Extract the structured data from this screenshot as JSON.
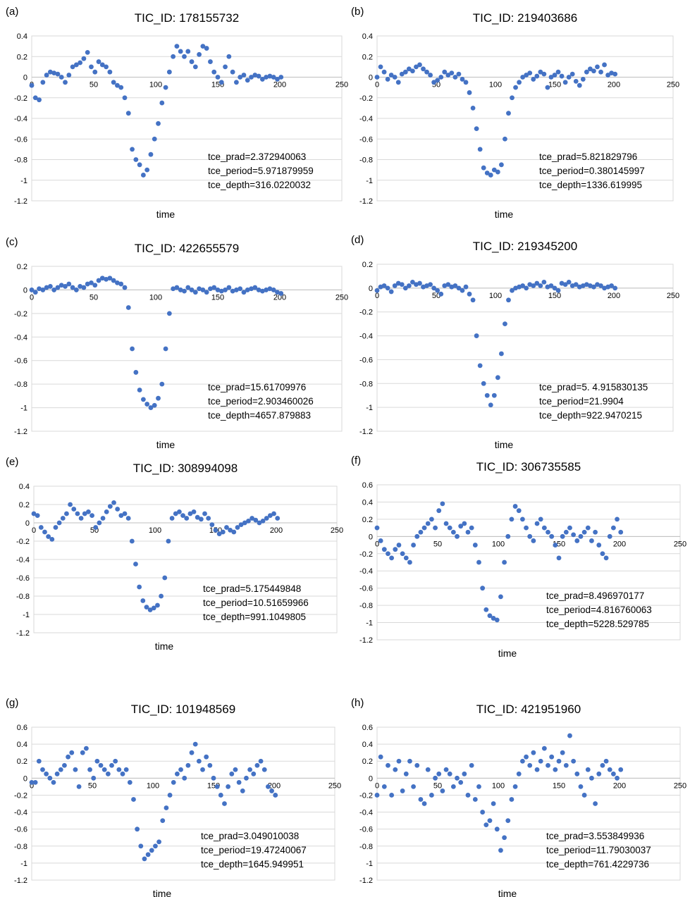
{
  "chart_data": [
    {
      "label": "(a)",
      "title": "TIC_ID: 178155732",
      "type": "scatter",
      "xlabel": "time",
      "xlim": [
        0,
        250
      ],
      "ylim": [
        -1.2,
        0.4
      ],
      "xticks": [
        "0",
        "50",
        "100",
        "150",
        "200",
        "250"
      ],
      "yticks": [
        "0.4",
        "0.2",
        "0",
        "-0.2",
        "-0.4",
        "-0.6",
        "-0.8",
        "-1",
        "-1.2"
      ],
      "annotations": [
        "tce_prad=2.372940063",
        "tce_period=5.971879959",
        "tce_depth=316.0220032"
      ],
      "color": "#4472C4",
      "x": [
        0,
        3,
        6,
        9,
        12,
        15,
        18,
        21,
        24,
        27,
        30,
        33,
        36,
        39,
        42,
        45,
        48,
        51,
        54,
        57,
        60,
        63,
        66,
        69,
        72,
        75,
        78,
        81,
        84,
        87,
        90,
        93,
        96,
        99,
        102,
        105,
        108,
        111,
        114,
        117,
        120,
        123,
        126,
        129,
        132,
        135,
        138,
        141,
        144,
        147,
        150,
        153,
        156,
        159,
        162,
        165,
        168,
        171,
        174,
        177,
        180,
        183,
        186,
        189,
        192,
        195,
        198,
        201
      ],
      "y": [
        -0.08,
        -0.2,
        -0.22,
        -0.05,
        0.02,
        0.05,
        0.04,
        0.03,
        0.0,
        -0.05,
        0.02,
        0.1,
        0.12,
        0.14,
        0.18,
        0.24,
        0.1,
        0.05,
        0.15,
        0.12,
        0.1,
        0.05,
        -0.05,
        -0.08,
        -0.1,
        -0.2,
        -0.35,
        -0.7,
        -0.8,
        -0.85,
        -0.95,
        -0.9,
        -0.75,
        -0.6,
        -0.45,
        -0.25,
        -0.1,
        0.05,
        0.2,
        0.3,
        0.25,
        0.2,
        0.25,
        0.15,
        0.1,
        0.22,
        0.3,
        0.28,
        0.15,
        0.05,
        0.0,
        -0.05,
        0.1,
        0.2,
        0.05,
        -0.05,
        0.0,
        0.02,
        -0.03,
        0.0,
        0.02,
        0.01,
        -0.02,
        0.0,
        0.01,
        0.0,
        -0.02,
        0.0
      ]
    },
    {
      "label": "(b)",
      "title": "TIC_ID: 219403686",
      "type": "scatter",
      "xlabel": "time",
      "xlim": [
        0,
        250
      ],
      "ylim": [
        -1.2,
        0.4
      ],
      "xticks": [
        "0",
        "50",
        "100",
        "150",
        "200",
        "250"
      ],
      "yticks": [
        "0.4",
        "0.2",
        "0",
        "-0.2",
        "-0.4",
        "-0.6",
        "-0.8",
        "-1",
        "-1.2"
      ],
      "annotations": [
        "tce_prad=5.821829796",
        "tce_period=0.380145997",
        "tce_depth=1336.619995"
      ],
      "color": "#4472C4",
      "x": [
        0,
        3,
        6,
        9,
        12,
        15,
        18,
        21,
        24,
        27,
        30,
        33,
        36,
        39,
        42,
        45,
        48,
        51,
        54,
        57,
        60,
        63,
        66,
        69,
        72,
        75,
        78,
        81,
        84,
        87,
        90,
        93,
        96,
        99,
        102,
        105,
        108,
        111,
        114,
        117,
        120,
        123,
        126,
        129,
        132,
        135,
        138,
        141,
        144,
        147,
        150,
        153,
        156,
        159,
        162,
        165,
        168,
        171,
        174,
        177,
        180,
        183,
        186,
        189,
        192,
        195,
        198,
        201
      ],
      "y": [
        0.0,
        0.1,
        0.05,
        -0.02,
        0.02,
        0.0,
        -0.05,
        0.03,
        0.05,
        0.08,
        0.06,
        0.1,
        0.12,
        0.08,
        0.05,
        0.02,
        -0.05,
        -0.03,
        0.0,
        0.05,
        0.02,
        0.04,
        0.0,
        0.03,
        -0.02,
        -0.05,
        -0.15,
        -0.3,
        -0.5,
        -0.7,
        -0.88,
        -0.93,
        -0.95,
        -0.9,
        -0.92,
        -0.85,
        -0.6,
        -0.35,
        -0.2,
        -0.1,
        -0.05,
        0.0,
        0.02,
        0.04,
        -0.02,
        0.01,
        0.05,
        0.03,
        -0.1,
        0.0,
        0.02,
        0.05,
        0.01,
        -0.05,
        0.0,
        0.03,
        -0.04,
        -0.08,
        -0.02,
        0.05,
        0.08,
        0.06,
        0.1,
        0.05,
        0.12,
        0.02,
        0.04,
        0.03
      ]
    },
    {
      "label": "(c)",
      "title": "TIC_ID: 422655579",
      "type": "scatter",
      "xlabel": "time",
      "xlim": [
        0,
        250
      ],
      "ylim": [
        -1.2,
        0.2
      ],
      "xticks": [
        "0",
        "50",
        "100",
        "150",
        "200",
        "250"
      ],
      "yticks": [
        "0.2",
        "0",
        "-0.2",
        "-0.4",
        "-0.6",
        "-0.8",
        "-1",
        "-1.2"
      ],
      "annotations": [
        "tce_prad=15.61709976",
        "tce_period=2.903460026",
        "tce_depth=4657.879883"
      ],
      "color": "#4472C4",
      "x": [
        0,
        3,
        6,
        9,
        12,
        15,
        18,
        21,
        24,
        27,
        30,
        33,
        36,
        39,
        42,
        45,
        48,
        51,
        54,
        57,
        60,
        63,
        66,
        69,
        72,
        75,
        78,
        81,
        84,
        87,
        90,
        93,
        96,
        99,
        102,
        105,
        108,
        111,
        114,
        117,
        120,
        123,
        126,
        129,
        132,
        135,
        138,
        141,
        144,
        147,
        150,
        153,
        156,
        159,
        162,
        165,
        168,
        171,
        174,
        177,
        180,
        183,
        186,
        189,
        192,
        195,
        198,
        201
      ],
      "y": [
        0.0,
        -0.02,
        0.01,
        0.0,
        0.02,
        0.03,
        0.0,
        0.02,
        0.04,
        0.03,
        0.05,
        0.02,
        0.0,
        0.03,
        0.02,
        0.05,
        0.06,
        0.04,
        0.08,
        0.1,
        0.09,
        0.1,
        0.08,
        0.06,
        0.05,
        0.02,
        -0.15,
        -0.5,
        -0.7,
        -0.85,
        -0.93,
        -0.97,
        -1.0,
        -0.98,
        -0.92,
        -0.8,
        -0.5,
        -0.2,
        0.01,
        0.02,
        0.0,
        -0.01,
        0.02,
        0.0,
        -0.02,
        0.01,
        0.0,
        -0.02,
        0.01,
        0.02,
        0.0,
        -0.01,
        0.0,
        0.02,
        -0.01,
        0.0,
        0.01,
        -0.02,
        0.0,
        0.01,
        0.02,
        0.0,
        -0.01,
        0.0,
        0.01,
        0.0,
        -0.02,
        -0.03
      ]
    },
    {
      "label": "(d)",
      "title": "TIC_ID: 219345200",
      "type": "scatter",
      "xlabel": "time",
      "xlim": [
        0,
        250
      ],
      "ylim": [
        -1.2,
        0.2
      ],
      "xticks": [
        "0",
        "50",
        "100",
        "150",
        "200",
        "250"
      ],
      "yticks": [
        "0.2",
        "0",
        "-0.2",
        "-0.4",
        "-0.6",
        "-0.8",
        "-1",
        "-1.2"
      ],
      "annotations": [
        "tce_prad=5. 4.915830135",
        "tce_period=21.9904",
        "tce_depth=922.9470215"
      ],
      "color": "#4472C4",
      "x": [
        0,
        3,
        6,
        9,
        12,
        15,
        18,
        21,
        24,
        27,
        30,
        33,
        36,
        39,
        42,
        45,
        48,
        51,
        54,
        57,
        60,
        63,
        66,
        69,
        72,
        75,
        78,
        81,
        84,
        87,
        90,
        93,
        96,
        99,
        102,
        105,
        108,
        111,
        114,
        117,
        120,
        123,
        126,
        129,
        132,
        135,
        138,
        141,
        144,
        147,
        150,
        153,
        156,
        159,
        162,
        165,
        168,
        171,
        174,
        177,
        180,
        183,
        186,
        189,
        192,
        195,
        198,
        201
      ],
      "y": [
        -0.02,
        0.01,
        0.02,
        0.0,
        -0.03,
        0.02,
        0.04,
        0.03,
        0.0,
        0.02,
        0.05,
        0.03,
        0.04,
        0.01,
        0.02,
        0.03,
        0.0,
        -0.02,
        -0.05,
        0.02,
        0.03,
        0.01,
        0.02,
        0.0,
        -0.02,
        0.01,
        -0.05,
        -0.1,
        -0.4,
        -0.65,
        -0.8,
        -0.9,
        -0.98,
        -0.9,
        -0.75,
        -0.55,
        -0.3,
        -0.1,
        -0.02,
        0.0,
        0.01,
        0.02,
        0.0,
        0.03,
        0.02,
        0.04,
        0.02,
        0.05,
        0.01,
        0.02,
        0.0,
        -0.02,
        0.04,
        0.03,
        0.05,
        0.02,
        0.03,
        0.01,
        0.02,
        0.03,
        0.02,
        0.01,
        0.03,
        0.02,
        0.0,
        0.01,
        0.02,
        0.0
      ]
    },
    {
      "label": "(e)",
      "title": "TIC_ID: 308994098",
      "type": "scatter",
      "xlabel": "time",
      "xlim": [
        0,
        250
      ],
      "ylim": [
        -1.2,
        0.4
      ],
      "xticks": [
        "0",
        "50",
        "100",
        "150",
        "200",
        "250"
      ],
      "yticks": [
        "0.4",
        "0.2",
        "0",
        "-0.2",
        "-0.4",
        "-0.6",
        "-0.8",
        "-1",
        "-1.2"
      ],
      "annotations": [
        "tce_prad=5.175449848",
        "tce_period=10.51659966",
        "tce_depth=991.1049805"
      ],
      "color": "#4472C4",
      "x": [
        0,
        3,
        6,
        9,
        12,
        15,
        18,
        21,
        24,
        27,
        30,
        33,
        36,
        39,
        42,
        45,
        48,
        51,
        54,
        57,
        60,
        63,
        66,
        69,
        72,
        75,
        78,
        81,
        84,
        87,
        90,
        93,
        96,
        99,
        102,
        105,
        108,
        111,
        114,
        117,
        120,
        123,
        126,
        129,
        132,
        135,
        138,
        141,
        144,
        147,
        150,
        153,
        156,
        159,
        162,
        165,
        168,
        171,
        174,
        177,
        180,
        183,
        186,
        189,
        192,
        195,
        198,
        201
      ],
      "y": [
        0.1,
        0.08,
        -0.05,
        -0.1,
        -0.15,
        -0.18,
        -0.05,
        0.0,
        0.05,
        0.1,
        0.2,
        0.15,
        0.1,
        0.05,
        0.1,
        0.12,
        0.08,
        -0.05,
        0.0,
        0.05,
        0.12,
        0.18,
        0.22,
        0.15,
        0.08,
        0.1,
        0.05,
        -0.2,
        -0.45,
        -0.7,
        -0.85,
        -0.92,
        -0.95,
        -0.93,
        -0.9,
        -0.8,
        -0.6,
        -0.2,
        0.05,
        0.1,
        0.12,
        0.08,
        0.05,
        0.1,
        0.12,
        0.06,
        0.04,
        0.1,
        0.05,
        -0.02,
        -0.08,
        -0.12,
        -0.1,
        -0.05,
        -0.08,
        -0.1,
        -0.05,
        -0.02,
        0.0,
        0.02,
        0.05,
        0.03,
        0.0,
        0.02,
        0.05,
        0.08,
        0.1,
        0.05
      ]
    },
    {
      "label": "(f)",
      "title": "TIC_ID: 306735585",
      "type": "scatter",
      "xlabel": "time",
      "xlim": [
        0,
        250
      ],
      "ylim": [
        -1.2,
        0.6
      ],
      "xticks": [
        "0",
        "50",
        "100",
        "150",
        "200",
        "250"
      ],
      "yticks": [
        "0.6",
        "0.4",
        "0.2",
        "0",
        "-0.2",
        "-0.4",
        "-0.6",
        "-0.8",
        "-1",
        "-1.2"
      ],
      "annotations": [
        "tce_prad=8.496970177",
        "tce_period=4.816760063",
        "tce_depth=5228.529785"
      ],
      "color": "#4472C4",
      "x": [
        0,
        3,
        6,
        9,
        12,
        15,
        18,
        21,
        24,
        27,
        30,
        33,
        36,
        39,
        42,
        45,
        48,
        51,
        54,
        57,
        60,
        63,
        66,
        69,
        72,
        75,
        78,
        81,
        84,
        87,
        90,
        93,
        96,
        99,
        102,
        105,
        108,
        111,
        114,
        117,
        120,
        123,
        126,
        129,
        132,
        135,
        138,
        141,
        144,
        147,
        150,
        153,
        156,
        159,
        162,
        165,
        168,
        171,
        174,
        177,
        180,
        183,
        186,
        189,
        192,
        195,
        198,
        201
      ],
      "y": [
        0.1,
        -0.05,
        -0.15,
        -0.2,
        -0.25,
        -0.15,
        -0.1,
        -0.2,
        -0.25,
        -0.3,
        -0.1,
        0.0,
        0.05,
        0.1,
        0.15,
        0.2,
        0.1,
        0.3,
        0.38,
        0.15,
        0.1,
        0.05,
        0.0,
        0.12,
        0.15,
        0.05,
        0.1,
        -0.1,
        -0.3,
        -0.6,
        -0.85,
        -0.92,
        -0.95,
        -0.97,
        -0.7,
        -0.3,
        0.0,
        0.2,
        0.35,
        0.3,
        0.2,
        0.1,
        0.0,
        -0.05,
        0.15,
        0.2,
        0.1,
        0.05,
        0.0,
        -0.1,
        -0.25,
        0.0,
        0.05,
        0.1,
        0.02,
        -0.05,
        0.0,
        0.05,
        0.1,
        -0.05,
        0.05,
        -0.1,
        -0.2,
        -0.25,
        0.0,
        0.1,
        0.2,
        0.05
      ]
    },
    {
      "label": "(g)",
      "title": "TIC_ID: 101948569",
      "type": "scatter",
      "xlabel": "time",
      "xlim": [
        0,
        250
      ],
      "ylim": [
        -1.2,
        0.6
      ],
      "xticks": [
        "0",
        "50",
        "100",
        "150",
        "200",
        "250"
      ],
      "yticks": [
        "0.6",
        "0.4",
        "0.2",
        "0",
        "-0.2",
        "-0.4",
        "-0.6",
        "-0.8",
        "-1",
        "-1.2"
      ],
      "annotations": [
        "tce_prad=3.049010038",
        "tce_period=19.47240067",
        "tce_depth=1645.949951"
      ],
      "color": "#4472C4",
      "x": [
        0,
        3,
        6,
        9,
        12,
        15,
        18,
        21,
        24,
        27,
        30,
        33,
        36,
        39,
        42,
        45,
        48,
        51,
        54,
        57,
        60,
        63,
        66,
        69,
        72,
        75,
        78,
        81,
        84,
        87,
        90,
        93,
        96,
        99,
        102,
        105,
        108,
        111,
        114,
        117,
        120,
        123,
        126,
        129,
        132,
        135,
        138,
        141,
        144,
        147,
        150,
        153,
        156,
        159,
        162,
        165,
        168,
        171,
        174,
        177,
        180,
        183,
        186,
        189,
        192,
        195,
        198,
        201
      ],
      "y": [
        -0.05,
        -0.05,
        0.2,
        0.1,
        0.05,
        0.0,
        -0.05,
        0.05,
        0.1,
        0.15,
        0.25,
        0.3,
        0.1,
        -0.1,
        0.3,
        0.35,
        0.1,
        0.0,
        0.2,
        0.15,
        0.1,
        0.05,
        0.15,
        0.2,
        0.1,
        0.05,
        0.1,
        -0.05,
        -0.25,
        -0.6,
        -0.8,
        -0.95,
        -0.9,
        -0.85,
        -0.8,
        -0.75,
        -0.5,
        -0.35,
        -0.2,
        -0.05,
        0.05,
        0.1,
        0.0,
        0.15,
        0.3,
        0.4,
        0.2,
        0.1,
        0.25,
        0.15,
        0.0,
        -0.1,
        -0.2,
        -0.3,
        -0.1,
        0.05,
        0.1,
        -0.05,
        -0.15,
        0.0,
        0.1,
        0.05,
        0.15,
        0.2,
        0.1,
        -0.1,
        -0.15,
        -0.2
      ]
    },
    {
      "label": "(h)",
      "title": "TIC_ID: 421951960",
      "type": "scatter",
      "xlabel": "time",
      "xlim": [
        0,
        250
      ],
      "ylim": [
        -1.2,
        0.6
      ],
      "xticks": [
        "0",
        "50",
        "100",
        "150",
        "200",
        "250"
      ],
      "yticks": [
        "0.6",
        "0.4",
        "0.2",
        "0",
        "-0.2",
        "-0.4",
        "-0.6",
        "-0.8",
        "-1",
        "-1.2"
      ],
      "annotations": [
        "tce_prad=3.553849936",
        "tce_period=11.79030037",
        "tce_depth=761.4229736"
      ],
      "color": "#4472C4",
      "x": [
        0,
        3,
        6,
        9,
        12,
        15,
        18,
        21,
        24,
        27,
        30,
        33,
        36,
        39,
        42,
        45,
        48,
        51,
        54,
        57,
        60,
        63,
        66,
        69,
        72,
        75,
        78,
        81,
        84,
        87,
        90,
        93,
        96,
        99,
        102,
        105,
        108,
        111,
        114,
        117,
        120,
        123,
        126,
        129,
        132,
        135,
        138,
        141,
        144,
        147,
        150,
        153,
        156,
        159,
        162,
        165,
        168,
        171,
        174,
        177,
        180,
        183,
        186,
        189,
        192,
        195,
        198,
        201
      ],
      "y": [
        -0.2,
        0.25,
        -0.1,
        0.15,
        -0.2,
        0.1,
        0.2,
        -0.15,
        0.05,
        0.2,
        -0.1,
        0.15,
        -0.25,
        -0.3,
        0.1,
        -0.2,
        0.0,
        0.05,
        -0.15,
        0.1,
        0.05,
        -0.1,
        0.0,
        -0.05,
        0.05,
        -0.2,
        0.15,
        -0.25,
        -0.1,
        -0.4,
        -0.55,
        -0.5,
        -0.3,
        -0.6,
        -0.85,
        -0.7,
        -0.5,
        -0.25,
        -0.1,
        0.05,
        0.2,
        0.25,
        0.15,
        0.3,
        0.1,
        0.2,
        0.35,
        0.15,
        0.25,
        0.1,
        0.2,
        0.3,
        0.15,
        0.5,
        0.2,
        0.05,
        -0.1,
        -0.2,
        0.1,
        0.0,
        -0.3,
        0.05,
        0.15,
        0.2,
        0.1,
        0.05,
        0.0,
        0.1
      ]
    }
  ]
}
